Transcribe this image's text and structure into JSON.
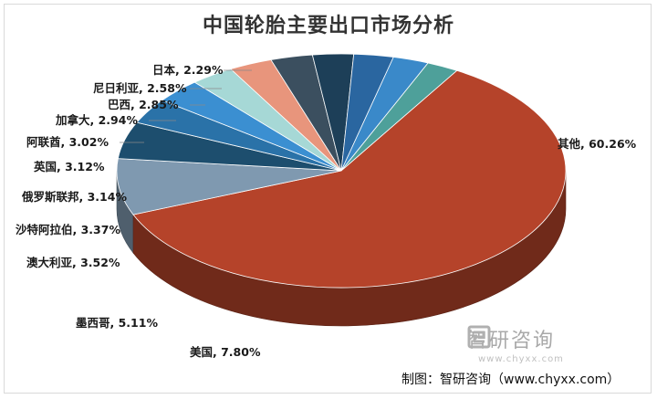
{
  "chart_data": {
    "type": "pie",
    "title": "中国轮胎主要出口市场分析",
    "categories": [
      "其他",
      "美国",
      "墨西哥",
      "澳大利亚",
      "沙特阿拉伯",
      "俄罗斯联邦",
      "英国",
      "阿联酋",
      "加拿大",
      "巴西",
      "尼日利亚",
      "日本"
    ],
    "values": [
      60.26,
      7.8,
      5.11,
      3.52,
      3.37,
      3.14,
      3.12,
      3.02,
      2.94,
      2.85,
      2.58,
      2.29
    ],
    "labels": [
      "其他, 60.26%",
      "美国, 7.80%",
      "墨西哥, 5.11%",
      "澳大利亚, 3.52%",
      "沙特阿拉伯, 3.37%",
      "俄罗斯联邦, 3.14%",
      "英国, 3.12%",
      "阿联酋, 3.02%",
      "加拿大, 2.94%",
      "巴西, 2.85%",
      "尼日利亚, 2.58%",
      "日本, 2.29%"
    ],
    "colors": [
      "#b5432a",
      "#7f99b0",
      "#1d4e6e",
      "#2a72a8",
      "#3b8fd1",
      "#a6d8d6",
      "#e8957c",
      "#3b4f5f",
      "#1d3f58",
      "#2a66a0",
      "#3a89c9",
      "#4ea09a"
    ],
    "legend": "none"
  },
  "source": "制图：智研咨询（www.chyxx.com）",
  "watermark": {
    "text": "智研咨询",
    "url": "www.chyxx.com"
  }
}
